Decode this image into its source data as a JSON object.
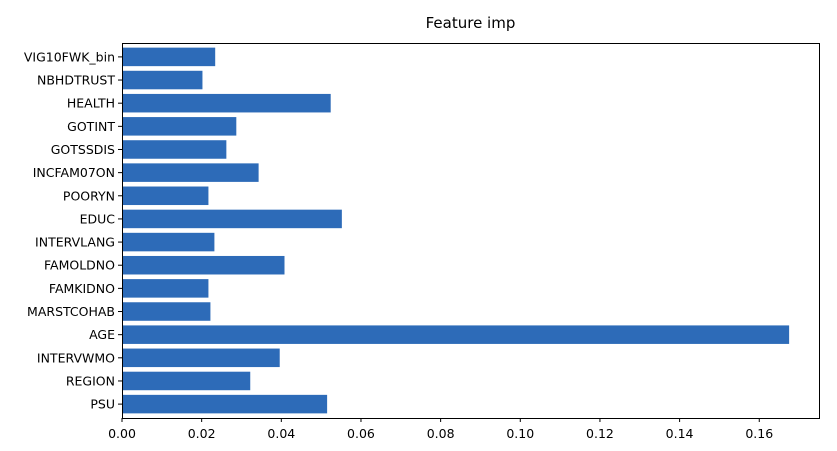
{
  "chart_data": {
    "type": "bar",
    "orientation": "horizontal",
    "title": "Feature imp",
    "xlabel": "",
    "ylabel": "",
    "categories": [
      "PSU",
      "REGION",
      "INTERVWMO",
      "AGE",
      "MARSTCOHAB",
      "FAMKIDNO",
      "FAMOLDNO",
      "INTERVLANG",
      "EDUC",
      "POORYN",
      "INCFAM07ON",
      "GOTSSDIS",
      "GOTINT",
      "HEALTH",
      "NBHDTRUST",
      "VIG10FWK_bin"
    ],
    "values": [
      0.0515,
      0.0322,
      0.0396,
      0.1675,
      0.0222,
      0.0217,
      0.0408,
      0.0232,
      0.0552,
      0.0217,
      0.0343,
      0.0262,
      0.0287,
      0.0524,
      0.0202,
      0.0234
    ],
    "xlim": [
      0.0,
      0.175
    ],
    "xticks": [
      "0.00",
      "0.02",
      "0.04",
      "0.06",
      "0.08",
      "0.10",
      "0.12",
      "0.14",
      "0.16"
    ],
    "bar_color": "#2d6bb8",
    "grid": false,
    "legend": "none"
  }
}
